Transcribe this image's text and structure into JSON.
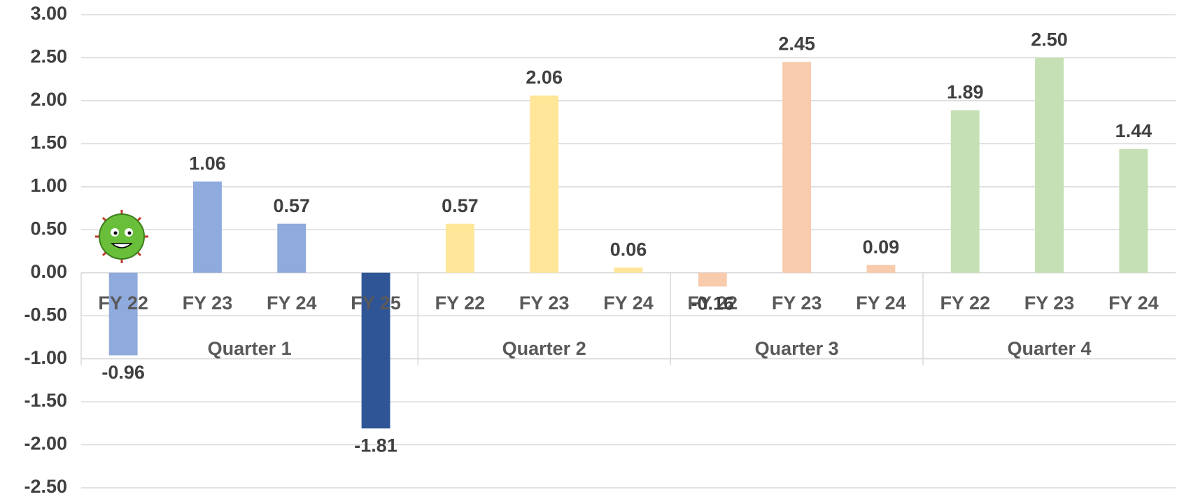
{
  "chart_data": {
    "type": "bar",
    "ylim": [
      -2.5,
      3
    ],
    "yticks": [
      {
        "value": -2.5,
        "label": "-2.50"
      },
      {
        "value": -2,
        "label": "-2.00"
      },
      {
        "value": -1.5,
        "label": "-1.50"
      },
      {
        "value": -1,
        "label": "-1.00"
      },
      {
        "value": -0.5,
        "label": "-0.50"
      },
      {
        "value": 0,
        "label": "0.00"
      },
      {
        "value": 0.5,
        "label": "0.50"
      },
      {
        "value": 1,
        "label": "1.00"
      },
      {
        "value": 1.5,
        "label": "1.50"
      },
      {
        "value": 2,
        "label": "2.00"
      },
      {
        "value": 2.5,
        "label": "2.50"
      },
      {
        "value": 3,
        "label": "3.00"
      }
    ],
    "grid": true,
    "groups": [
      {
        "name": "Quarter 1",
        "categories": [
          "FY 22",
          "FY 23",
          "FY 24",
          "FY 25"
        ],
        "values": [
          -0.96,
          1.06,
          0.57,
          -1.81
        ],
        "value_labels": [
          "-0.96",
          "1.06",
          "0.57",
          "-1.81"
        ],
        "colors": [
          "#8faadc",
          "#8faadc",
          "#8faadc",
          "#2f5597"
        ]
      },
      {
        "name": "Quarter 2",
        "categories": [
          "FY 22",
          "FY 23",
          "FY 24"
        ],
        "values": [
          0.57,
          2.06,
          0.06
        ],
        "value_labels": [
          "0.57",
          "2.06",
          "0.06"
        ],
        "colors": [
          "#ffe699",
          "#ffe699",
          "#ffe699"
        ]
      },
      {
        "name": "Quarter 3",
        "categories": [
          "FY 22",
          "FY 23",
          "FY 24"
        ],
        "values": [
          -0.16,
          2.45,
          0.09
        ],
        "value_labels": [
          "-0.16",
          "2.45",
          "0.09"
        ],
        "colors": [
          "#f8cbad",
          "#f8cbad",
          "#f8cbad"
        ]
      },
      {
        "name": "Quarter 4",
        "categories": [
          "FY 22",
          "FY 23",
          "FY 24"
        ],
        "values": [
          1.89,
          2.5,
          1.44
        ],
        "value_labels": [
          "1.89",
          "2.50",
          "1.44"
        ],
        "colors": [
          "#c5e0b4",
          "#c5e0b4",
          "#c5e0b4"
        ]
      }
    ]
  }
}
